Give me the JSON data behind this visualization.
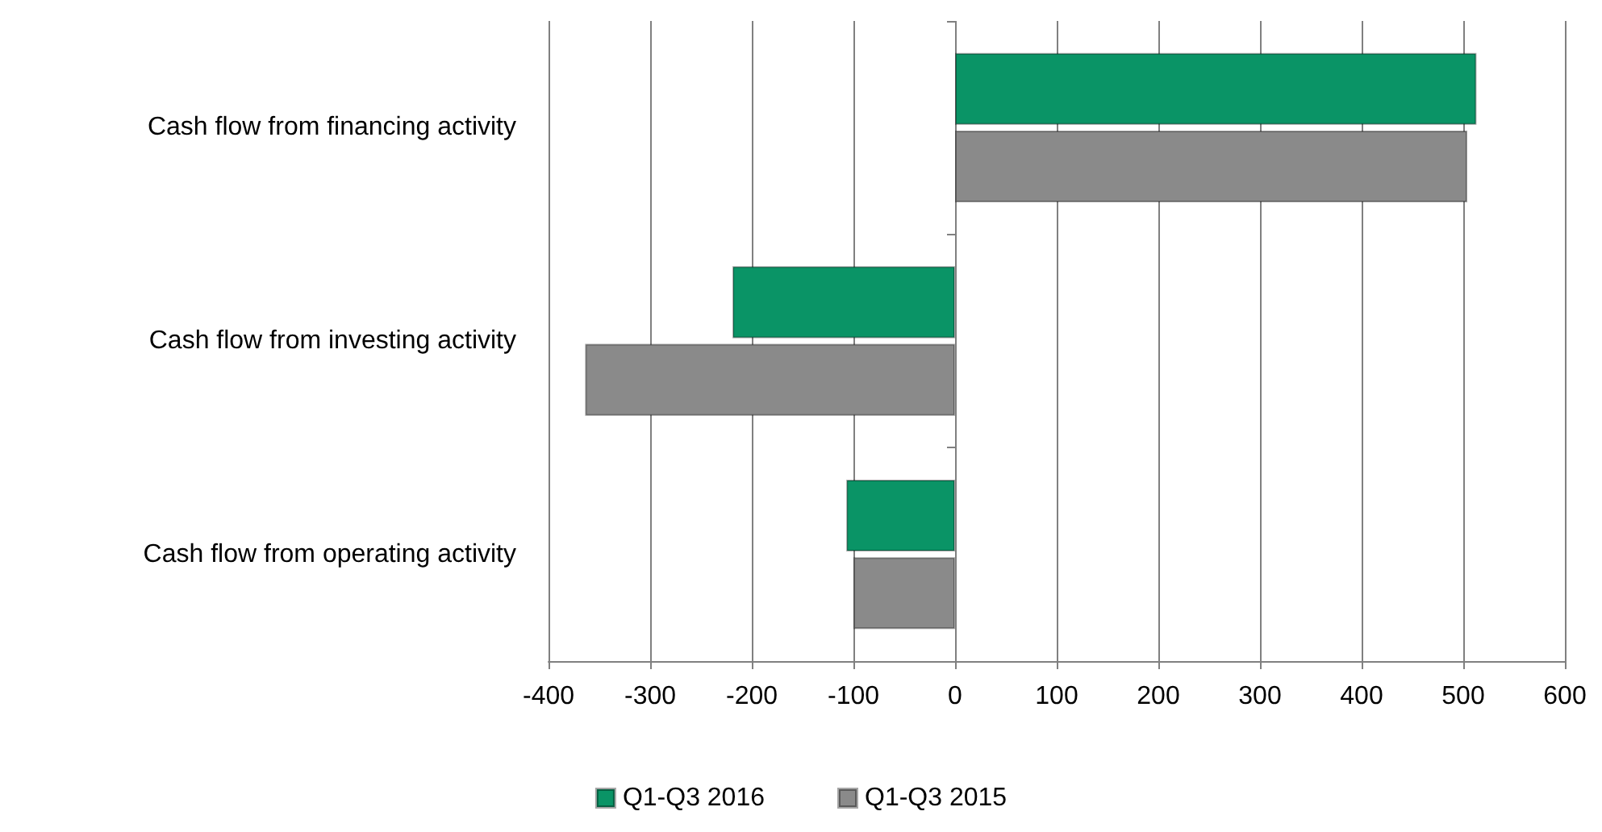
{
  "chart_data": {
    "type": "bar",
    "orientation": "horizontal",
    "categories": [
      "Cash flow from financing activity",
      "Cash flow from investing activity",
      "Cash flow from operating activity"
    ],
    "series": [
      {
        "name": "Q1-Q3 2016",
        "color": "#0a9466",
        "values": [
          513,
          -219,
          -107
        ]
      },
      {
        "name": "Q1-Q3 2015",
        "color": "#8a8a8a",
        "values": [
          504,
          -364,
          -100
        ]
      }
    ],
    "xlim": [
      -400,
      600
    ],
    "xticks": [
      -400,
      -300,
      -200,
      -100,
      0,
      100,
      200,
      300,
      400,
      500,
      600
    ],
    "grid": "x",
    "legend": "bottom"
  }
}
